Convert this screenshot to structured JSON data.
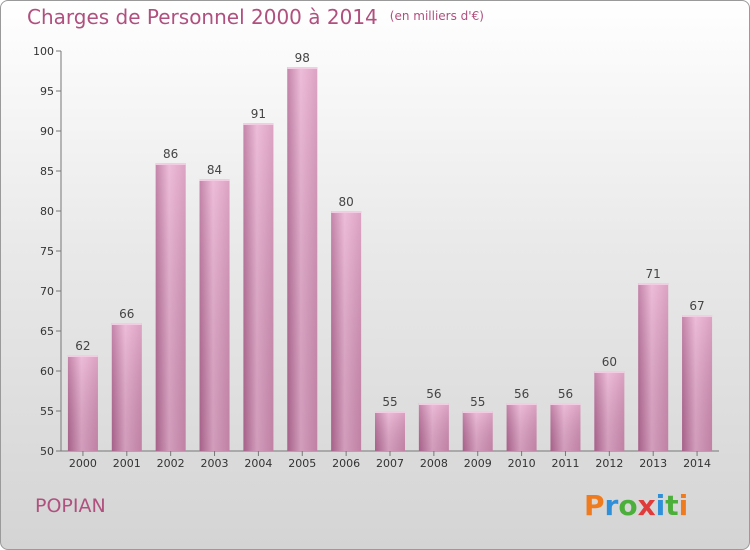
{
  "header": {
    "title": "Charges de Personnel 2000 à 2014",
    "subtitle": "(en milliers d'€)"
  },
  "footer": {
    "commune": "POPIAN",
    "brand": "Proxiti",
    "brand_colors": [
      "#f07b1e",
      "#2f8fd8",
      "#4caf3c",
      "#e03a3a",
      "#2f8fd8",
      "#4caf3c",
      "#f07b1e"
    ]
  },
  "chart_data": {
    "type": "bar",
    "title": "Charges de Personnel 2000 à 2014",
    "subtitle": "(en milliers d'€)",
    "categories": [
      "2000",
      "2001",
      "2002",
      "2003",
      "2004",
      "2005",
      "2006",
      "2007",
      "2008",
      "2009",
      "2010",
      "2011",
      "2012",
      "2013",
      "2014"
    ],
    "values": [
      62,
      66,
      86,
      84,
      91,
      98,
      80,
      55,
      56,
      55,
      56,
      56,
      60,
      71,
      67
    ],
    "ylim": [
      50,
      100
    ],
    "yticks": [
      50,
      55,
      60,
      65,
      70,
      75,
      80,
      85,
      90,
      95,
      100
    ],
    "grid": false,
    "bar_color": "#d58fb6",
    "bar_color_light": "#e9aed0",
    "bar_color_dark": "#b86b98"
  }
}
